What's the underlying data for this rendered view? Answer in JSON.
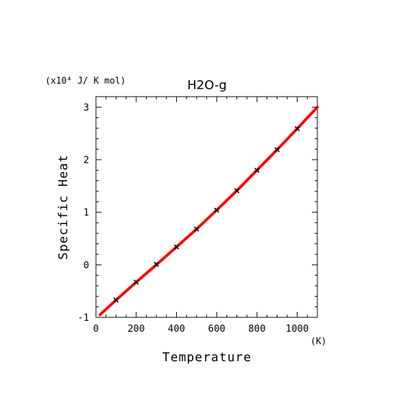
{
  "chart_data": {
    "type": "line",
    "title": "H2O-g",
    "xlabel": "Temperature",
    "ylabel": "Specific Heat",
    "x_unit": "(K)",
    "y_unit": "(x10⁴ J/ K mol)",
    "xlim": [
      0,
      1100
    ],
    "ylim": [
      -1,
      3.2
    ],
    "x_ticks": [
      0,
      200,
      400,
      600,
      800,
      1000
    ],
    "y_ticks": [
      -1,
      0,
      1,
      2,
      3
    ],
    "grid": false,
    "series": [
      {
        "kind": "line",
        "color": "#ff0000",
        "x": [
          20,
          100,
          200,
          300,
          400,
          500,
          600,
          700,
          800,
          900,
          1000,
          1100
        ],
        "y": [
          -0.95,
          -0.67,
          -0.33,
          0.0,
          0.34,
          0.68,
          1.04,
          1.41,
          1.8,
          2.19,
          2.59,
          3.0
        ]
      },
      {
        "kind": "markers",
        "marker": "x",
        "color": "#000000",
        "x": [
          100,
          200,
          300,
          400,
          500,
          600,
          700,
          800,
          900,
          1000
        ],
        "y": [
          -0.67,
          -0.33,
          0.01,
          0.34,
          0.68,
          1.04,
          1.41,
          1.8,
          2.19,
          2.59
        ]
      }
    ]
  }
}
